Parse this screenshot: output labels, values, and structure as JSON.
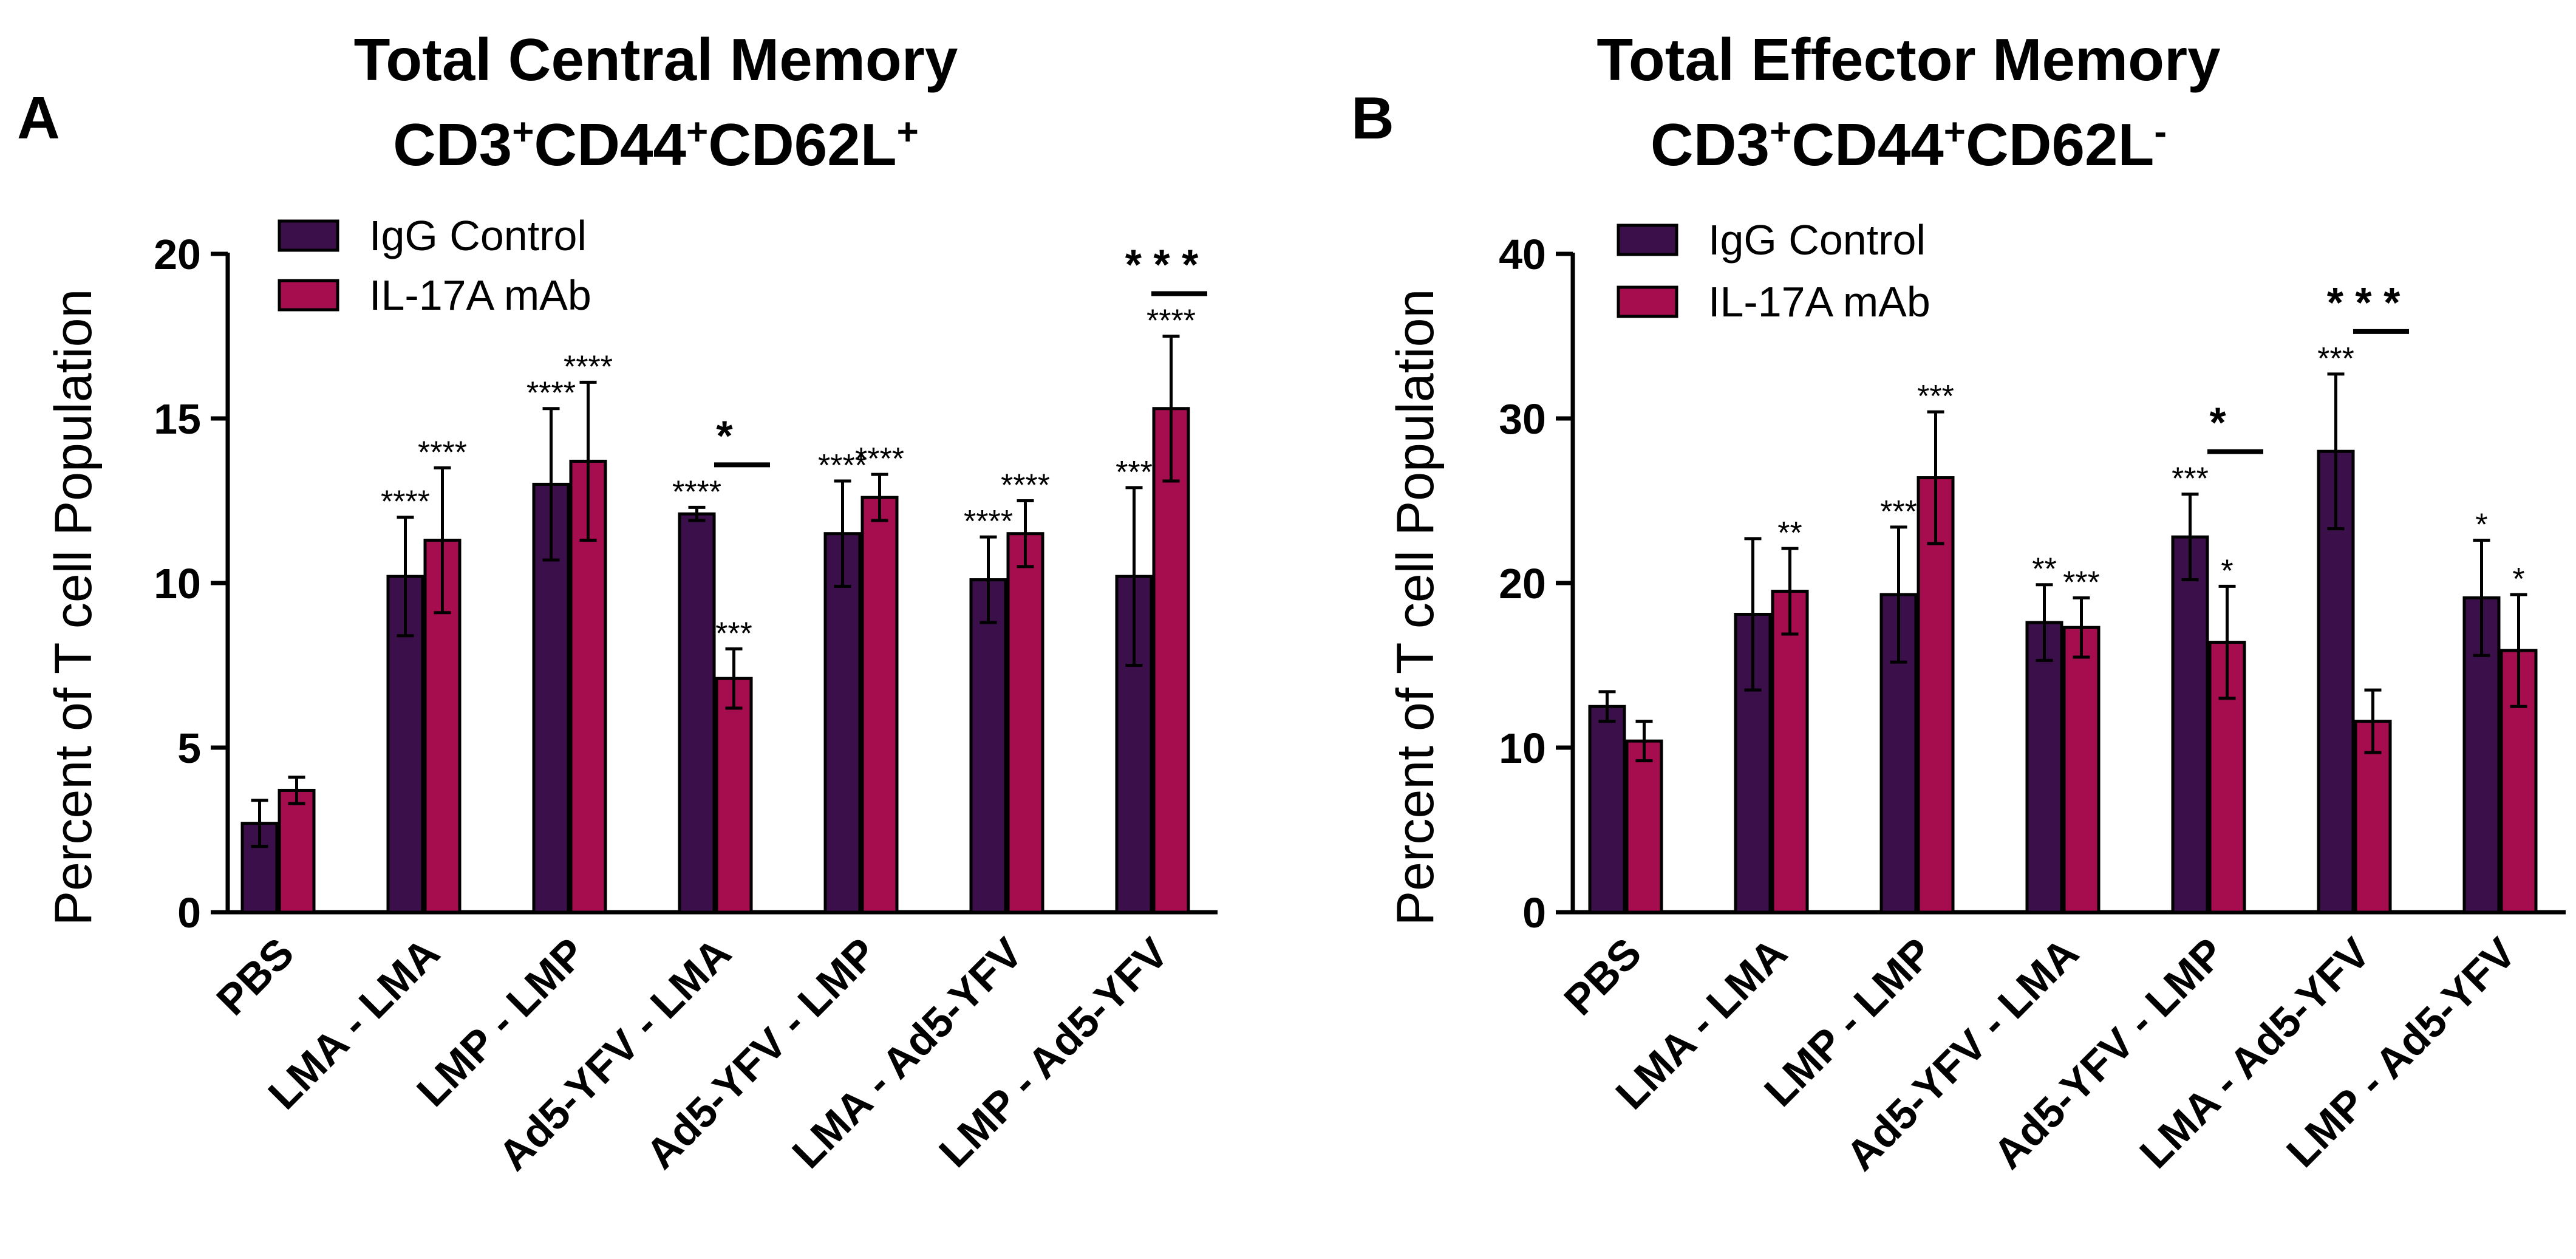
{
  "colors": {
    "igg": "#3b0f4a",
    "il17": "#a50d4e",
    "axis": "#000000"
  },
  "chart_data": [
    {
      "type": "bar",
      "panel": "A",
      "title_line1": "Total Central Memory",
      "title_line2": {
        "base1": "CD3",
        "sup1": "+",
        "base2": "CD44",
        "sup2": "+",
        "base3": "CD62L",
        "sup3": "+"
      },
      "ylabel": "Percent of  T cell Population",
      "ylim": [
        0,
        20
      ],
      "yticks": [
        0,
        5,
        10,
        15,
        20
      ],
      "categories": [
        "PBS",
        "LMA - LMA",
        "LMP - LMP",
        "Ad5-YFV - LMA",
        "Ad5-YFV - LMP",
        "LMA - Ad5-YFV",
        "LMP - Ad5-YFV"
      ],
      "legend": [
        "IgG Control",
        "IL-17A mAb"
      ],
      "series": [
        {
          "name": "IgG Control",
          "values": [
            2.7,
            10.2,
            13.0,
            12.1,
            11.5,
            10.1,
            10.2
          ],
          "errors": [
            0.7,
            1.8,
            2.3,
            0.2,
            1.6,
            1.3,
            2.7
          ],
          "sig": [
            "",
            "****",
            "****",
            "****",
            "****",
            "****",
            "***"
          ]
        },
        {
          "name": "IL-17A mAb",
          "values": [
            3.7,
            11.3,
            13.7,
            7.1,
            12.6,
            11.5,
            15.3
          ],
          "errors": [
            0.4,
            2.2,
            2.4,
            0.9,
            0.7,
            1.0,
            2.2
          ],
          "sig": [
            "",
            "****",
            "****",
            "***",
            "****",
            "****",
            "****"
          ]
        }
      ],
      "comparisons": [
        {
          "category": 3,
          "label": "*"
        },
        {
          "category": 6,
          "label": "* * *"
        }
      ]
    },
    {
      "type": "bar",
      "panel": "B",
      "title_line1": "Total Effector Memory",
      "title_line2": {
        "base1": "CD3",
        "sup1": "+",
        "base2": "CD44",
        "sup2": "+",
        "base3": "CD62L",
        "sup3": "-"
      },
      "ylabel": "Percent of  T cell Population",
      "ylim": [
        0,
        40
      ],
      "yticks": [
        0,
        10,
        20,
        30,
        40
      ],
      "categories": [
        "PBS",
        "LMA - LMA",
        "LMP - LMP",
        "Ad5-YFV - LMA",
        "Ad5-YFV - LMP",
        "LMA - Ad5-YFV",
        "LMP - Ad5-YFV"
      ],
      "legend": [
        "IgG Control",
        "IL-17A mAb"
      ],
      "series": [
        {
          "name": "IgG Control",
          "values": [
            12.5,
            18.1,
            19.3,
            17.6,
            22.8,
            28.0,
            19.1
          ],
          "errors": [
            0.9,
            4.6,
            4.1,
            2.3,
            2.6,
            4.7,
            3.5
          ],
          "sig": [
            "",
            "",
            "***",
            "**",
            "***",
            "***",
            "*"
          ]
        },
        {
          "name": "IL-17A mAb",
          "values": [
            10.4,
            19.5,
            26.4,
            17.3,
            16.4,
            11.6,
            15.9
          ],
          "errors": [
            1.2,
            2.6,
            4.0,
            1.8,
            3.4,
            1.9,
            3.4
          ],
          "sig": [
            "",
            "**",
            "***",
            "***",
            "*",
            "",
            "*"
          ]
        }
      ],
      "comparisons": [
        {
          "category": 4,
          "label": "*"
        },
        {
          "category": 5,
          "label": "* * *"
        }
      ]
    }
  ]
}
